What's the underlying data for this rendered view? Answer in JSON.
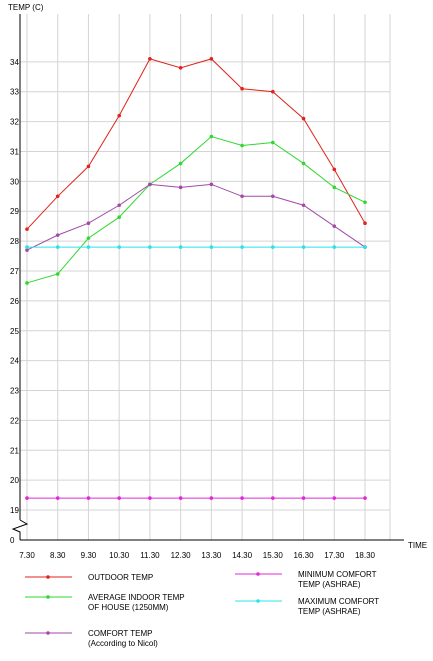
{
  "chart_data": {
    "type": "line",
    "title": "",
    "ylabel": "TEMP (C)",
    "xlabel": "TIME",
    "categories": [
      "7.30",
      "8.30",
      "9.30",
      "10.30",
      "11.30",
      "12.30",
      "13.30",
      "14.30",
      "15.30",
      "16.30",
      "17.30",
      "18.30"
    ],
    "y_ticks": [
      0,
      19,
      20,
      21,
      22,
      23,
      24,
      25,
      26,
      27,
      28,
      29,
      30,
      31,
      32,
      33,
      34
    ],
    "ylim": [
      18.6,
      35.4
    ],
    "y_axis_break": true,
    "grid": true,
    "legend_position": "bottom",
    "series": [
      {
        "name": "OUTDOOR TEMP",
        "color": "#e0231b",
        "values": [
          28.4,
          29.5,
          30.5,
          32.2,
          34.1,
          33.8,
          34.1,
          33.1,
          33.0,
          32.1,
          30.4,
          28.6
        ]
      },
      {
        "name": "AVERAGE INDOOR TEMP OF HOUSE (1250MM)",
        "color": "#2ed82e",
        "values": [
          26.6,
          26.9,
          28.1,
          28.8,
          29.9,
          30.6,
          31.5,
          31.2,
          31.3,
          30.6,
          29.8,
          29.3
        ]
      },
      {
        "name": "COMFORT TEMP (According to Nicol)",
        "color": "#a24aa6",
        "values": [
          27.7,
          28.2,
          28.6,
          29.2,
          29.9,
          29.8,
          29.9,
          29.5,
          29.5,
          29.2,
          28.5,
          27.8
        ]
      },
      {
        "name": "MINIMUM COMFORT TEMP (ASHRAE)",
        "color": "#e02ad6",
        "values": [
          19.4,
          19.4,
          19.4,
          19.4,
          19.4,
          19.4,
          19.4,
          19.4,
          19.4,
          19.4,
          19.4,
          19.4
        ]
      },
      {
        "name": "MAXIMUM COMFORT TEMP (ASHRAE)",
        "color": "#2fe0e6",
        "values": [
          27.8,
          27.8,
          27.8,
          27.8,
          27.8,
          27.8,
          27.8,
          27.8,
          27.8,
          27.8,
          27.8,
          27.8
        ]
      }
    ],
    "legend": [
      {
        "lines": [
          "OUTDOOR TEMP"
        ],
        "color": "#e0231b"
      },
      {
        "lines": [
          "MINIMUM COMFORT",
          "TEMP (ASHRAE)"
        ],
        "color": "#e02ad6"
      },
      {
        "lines": [
          "AVERAGE INDOOR TEMP",
          "OF HOUSE (1250MM)"
        ],
        "color": "#2ed82e"
      },
      {
        "lines": [
          "MAXIMUM COMFORT",
          "TEMP (ASHRAE)"
        ],
        "color": "#2fe0e6"
      },
      {
        "lines": [
          "COMFORT TEMP",
          "(According to Nicol)"
        ],
        "color": "#a24aa6"
      }
    ]
  }
}
